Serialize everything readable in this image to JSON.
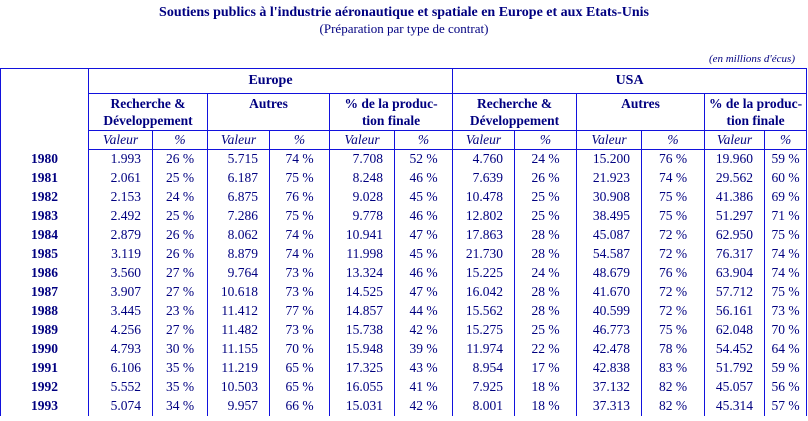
{
  "title": "Soutiens publics à l'industrie aéronautique et spatiale en Europe et aux Etats-Unis",
  "subtitle": "(Préparation par type de contrat)",
  "unit_note": "(en millions d'écus)",
  "colors": {
    "text": "#000080",
    "border": "#1212dd"
  },
  "table": {
    "region_headers": [
      "Europe",
      "USA"
    ],
    "group_headers": {
      "rd_line1": "Recherche &",
      "rd_line2": "Développement",
      "autres": "Autres",
      "prod_line1": "% de la produc-",
      "prod_line2": "tion finale"
    },
    "sub_headers": {
      "valeur": "Valeur",
      "percent": "%"
    },
    "rows": [
      {
        "year": "1980",
        "values": [
          "1.993",
          "26 %",
          "5.715",
          "74 %",
          "7.708",
          "52 %",
          "4.760",
          "24 %",
          "15.200",
          "76 %",
          "19.960",
          "59 %"
        ]
      },
      {
        "year": "1981",
        "values": [
          "2.061",
          "25 %",
          "6.187",
          "75 %",
          "8.248",
          "46 %",
          "7.639",
          "26 %",
          "21.923",
          "74 %",
          "29.562",
          "60 %"
        ]
      },
      {
        "year": "1982",
        "values": [
          "2.153",
          "24 %",
          "6.875",
          "76 %",
          "9.028",
          "45 %",
          "10.478",
          "25 %",
          "30.908",
          "75 %",
          "41.386",
          "69 %"
        ]
      },
      {
        "year": "1983",
        "values": [
          "2.492",
          "25 %",
          "7.286",
          "75 %",
          "9.778",
          "46 %",
          "12.802",
          "25 %",
          "38.495",
          "75 %",
          "51.297",
          "71 %"
        ]
      },
      {
        "year": "1984",
        "values": [
          "2.879",
          "26 %",
          "8.062",
          "74 %",
          "10.941",
          "47 %",
          "17.863",
          "28 %",
          "45.087",
          "72 %",
          "62.950",
          "75 %"
        ]
      },
      {
        "year": "1985",
        "values": [
          "3.119",
          "26 %",
          "8.879",
          "74 %",
          "11.998",
          "45 %",
          "21.730",
          "28 %",
          "54.587",
          "72 %",
          "76.317",
          "74 %"
        ]
      },
      {
        "year": "1986",
        "values": [
          "3.560",
          "27 %",
          "9.764",
          "73 %",
          "13.324",
          "46 %",
          "15.225",
          "24 %",
          "48.679",
          "76 %",
          "63.904",
          "74 %"
        ]
      },
      {
        "year": "1987",
        "values": [
          "3.907",
          "27 %",
          "10.618",
          "73 %",
          "14.525",
          "47 %",
          "16.042",
          "28 %",
          "41.670",
          "72 %",
          "57.712",
          "75 %"
        ]
      },
      {
        "year": "1988",
        "values": [
          "3.445",
          "23 %",
          "11.412",
          "77 %",
          "14.857",
          "44 %",
          "15.562",
          "28 %",
          "40.599",
          "72 %",
          "56.161",
          "73 %"
        ]
      },
      {
        "year": "1989",
        "values": [
          "4.256",
          "27 %",
          "11.482",
          "73 %",
          "15.738",
          "42 %",
          "15.275",
          "25 %",
          "46.773",
          "75 %",
          "62.048",
          "70 %"
        ]
      },
      {
        "year": "1990",
        "values": [
          "4.793",
          "30 %",
          "11.155",
          "70 %",
          "15.948",
          "39 %",
          "11.974",
          "22 %",
          "42.478",
          "78 %",
          "54.452",
          "64 %"
        ]
      },
      {
        "year": "1991",
        "values": [
          "6.106",
          "35 %",
          "11.219",
          "65 %",
          "17.325",
          "43 %",
          "8.954",
          "17 %",
          "42.838",
          "83 %",
          "51.792",
          "59 %"
        ]
      },
      {
        "year": "1992",
        "values": [
          "5.552",
          "35 %",
          "10.503",
          "65 %",
          "16.055",
          "41 %",
          "7.925",
          "18 %",
          "37.132",
          "82 %",
          "45.057",
          "56 %"
        ]
      },
      {
        "year": "1993",
        "values": [
          "5.074",
          "34 %",
          "9.957",
          "66 %",
          "15.031",
          "42 %",
          "8.001",
          "18 %",
          "37.313",
          "82 %",
          "45.314",
          "57 %"
        ]
      }
    ]
  }
}
